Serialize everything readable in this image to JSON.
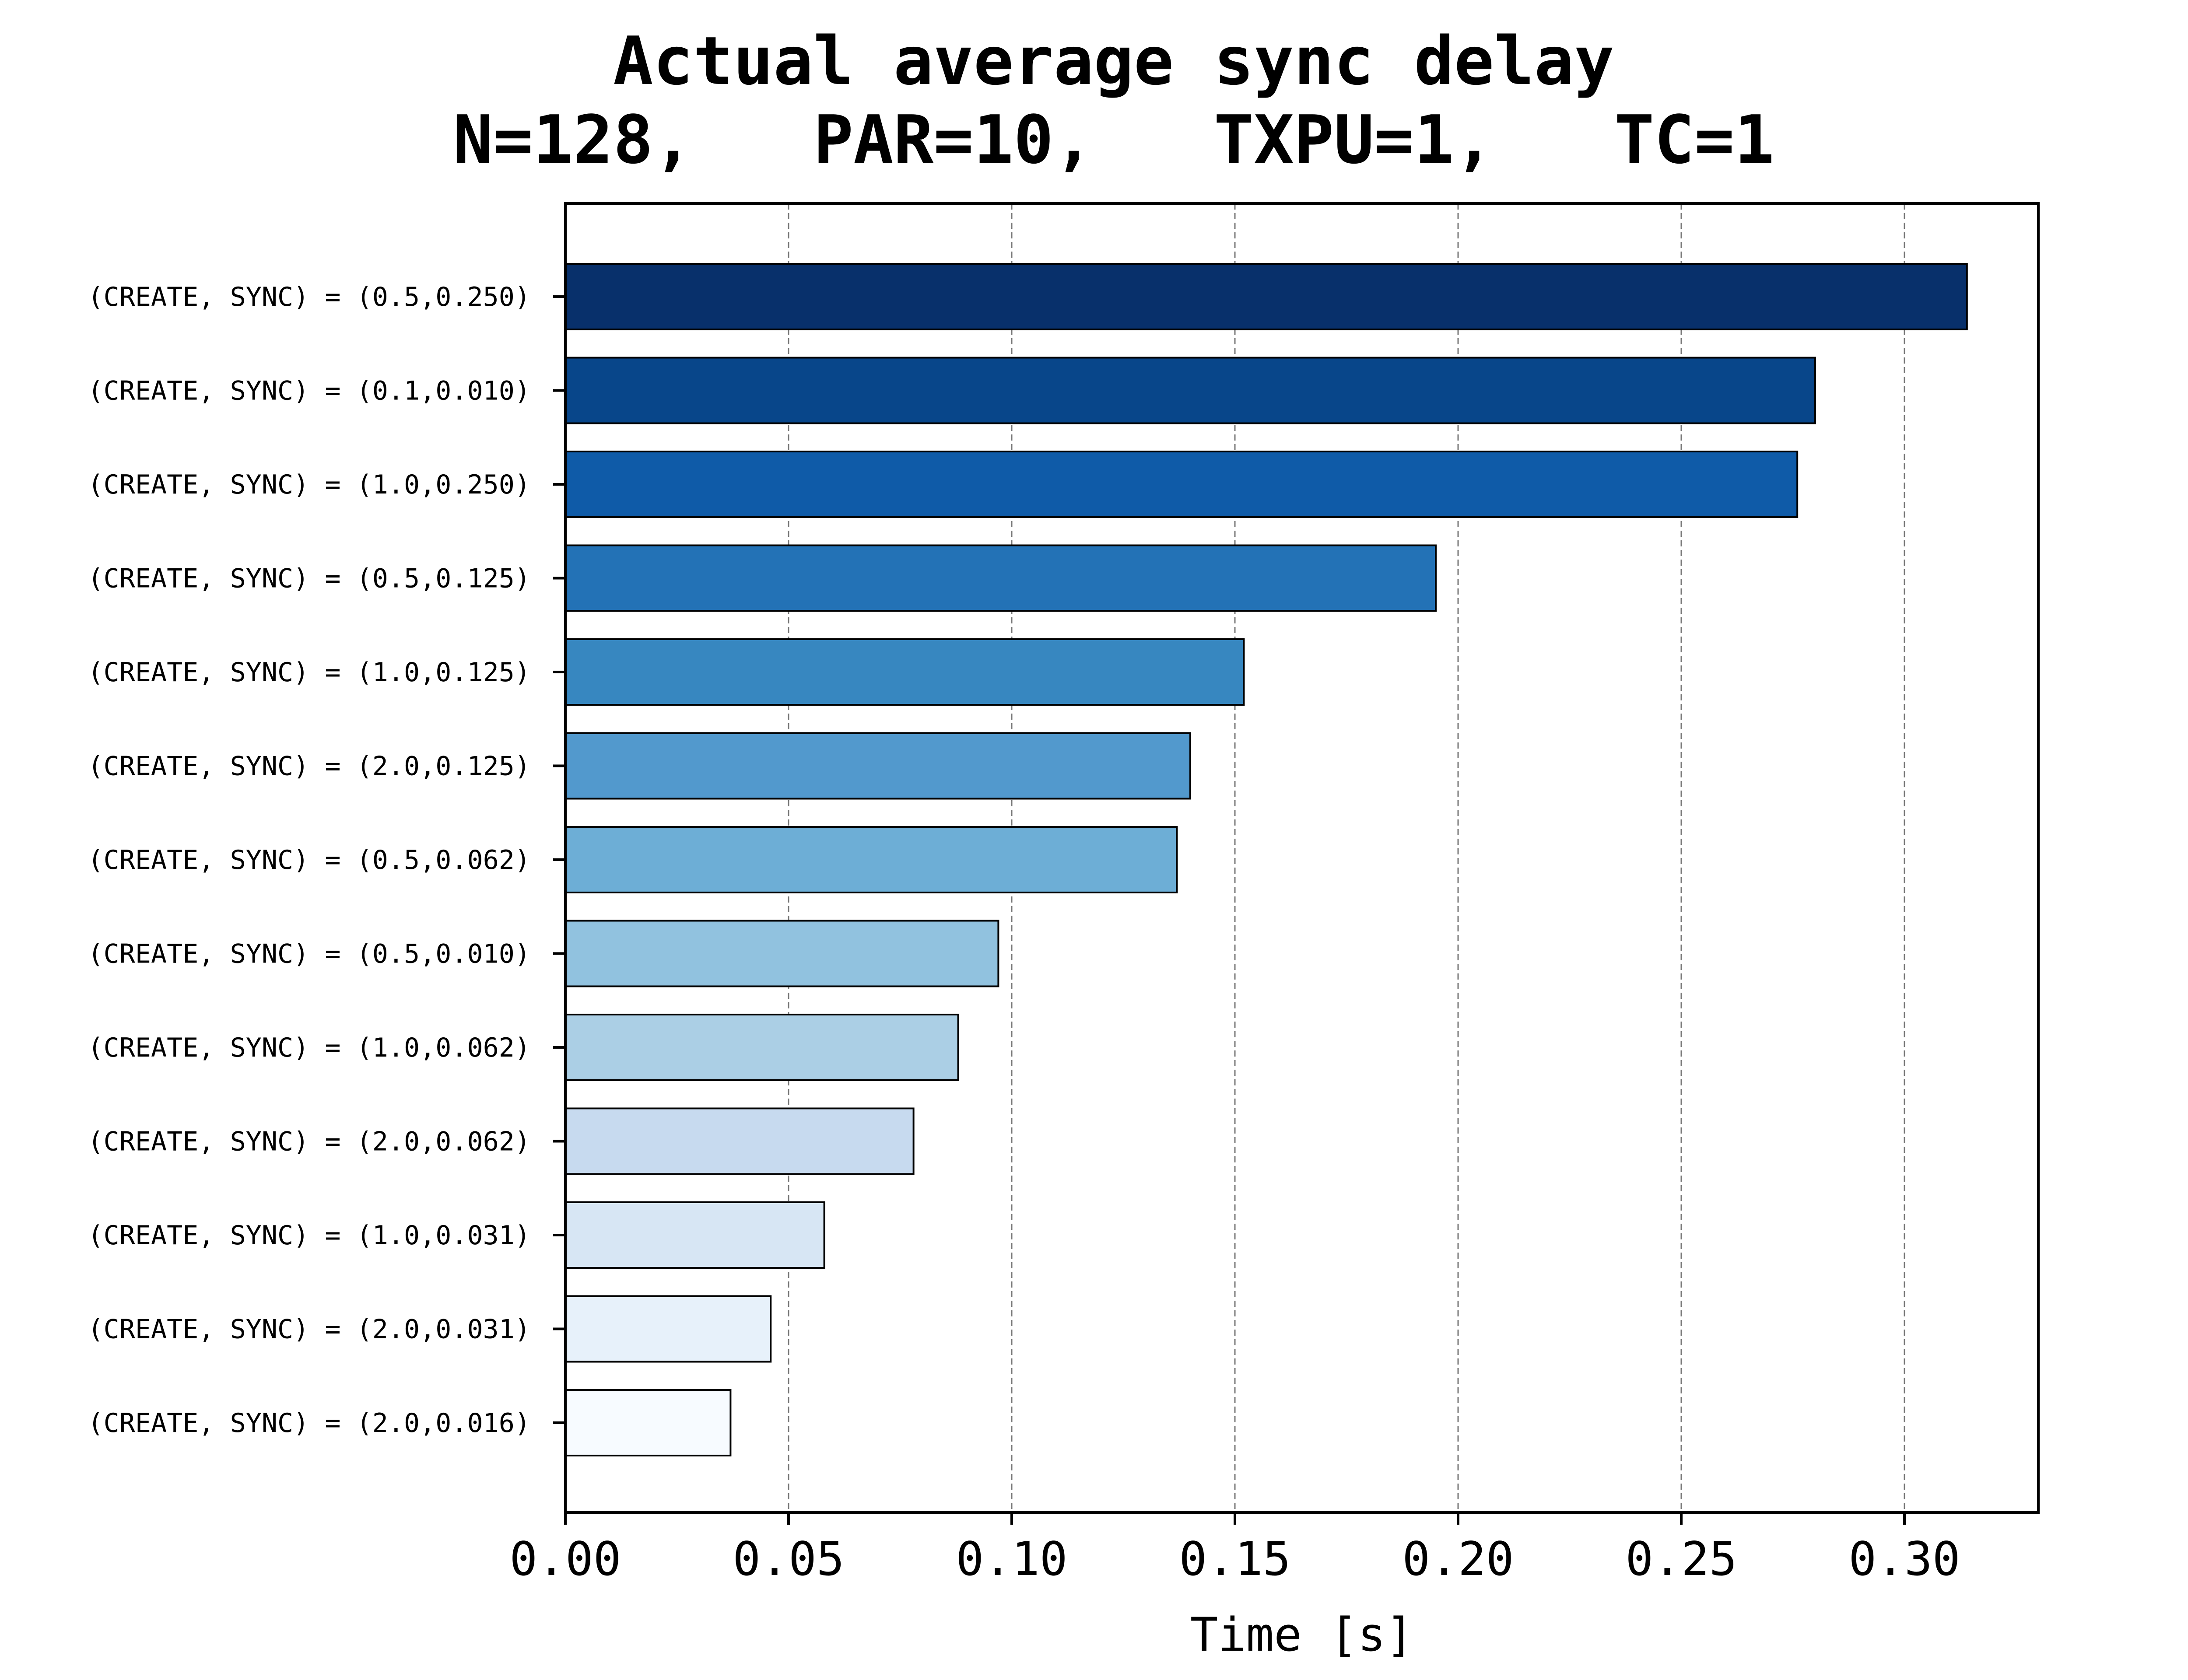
{
  "chart_data": {
    "type": "bar",
    "orientation": "horizontal",
    "title": "Actual average sync delay",
    "subtitle": "N=128,   PAR=10,   TXPU=1,   TC=1",
    "xlabel": "Time [s]",
    "ylabel": "",
    "xlim": [
      0.0,
      0.33
    ],
    "x_ticks": [
      "0.00",
      "0.05",
      "0.10",
      "0.15",
      "0.20",
      "0.25",
      "0.30"
    ],
    "x_tick_values": [
      0.0,
      0.05,
      0.1,
      0.15,
      0.2,
      0.25,
      0.3
    ],
    "grid": "x dashed",
    "categories": [
      "(CREATE, SYNC) = (0.5,0.250)",
      "(CREATE, SYNC) = (0.1,0.010)",
      "(CREATE, SYNC) = (1.0,0.250)",
      "(CREATE, SYNC) = (0.5,0.125)",
      "(CREATE, SYNC) = (1.0,0.125)",
      "(CREATE, SYNC) = (2.0,0.125)",
      "(CREATE, SYNC) = (0.5,0.062)",
      "(CREATE, SYNC) = (0.5,0.010)",
      "(CREATE, SYNC) = (1.0,0.062)",
      "(CREATE, SYNC) = (2.0,0.062)",
      "(CREATE, SYNC) = (1.0,0.031)",
      "(CREATE, SYNC) = (2.0,0.031)",
      "(CREATE, SYNC) = (2.0,0.016)"
    ],
    "values": [
      0.314,
      0.28,
      0.276,
      0.195,
      0.152,
      0.14,
      0.137,
      0.097,
      0.088,
      0.078,
      0.058,
      0.046,
      0.037
    ],
    "colors": [
      "#08306b",
      "#08468a",
      "#0f5ba8",
      "#2372b6",
      "#3787c0",
      "#5299cd",
      "#6daed6",
      "#91c2df",
      "#abcfe5",
      "#c7daef",
      "#d7e6f4",
      "#e7f1fa",
      "#f7fbff"
    ],
    "edge_color": "#000000",
    "grid_color": "#777777"
  }
}
